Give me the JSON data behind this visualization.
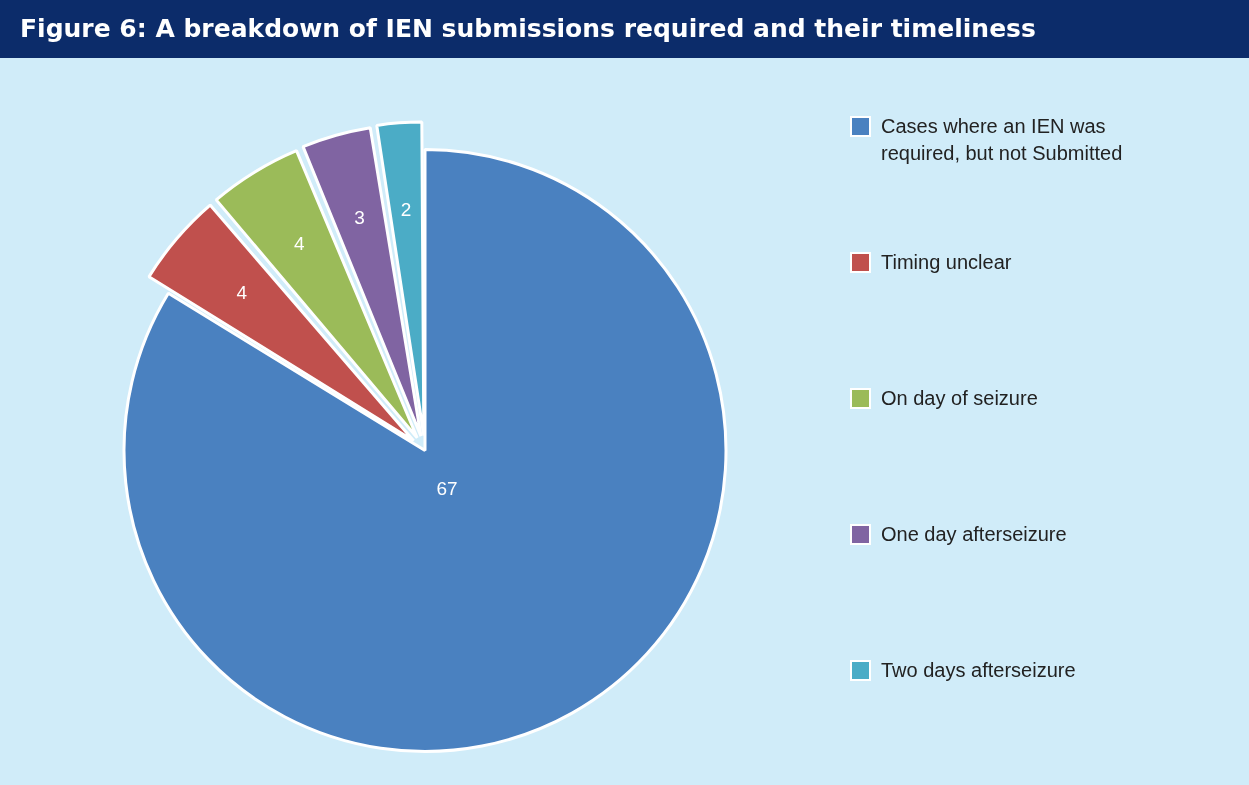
{
  "chart_data": {
    "type": "pie",
    "title": "Figure 6: A breakdown of IEN submissions required and their timeliness",
    "categories": [
      "Cases where an IEN was required, but not Submitted",
      "Timing unclear",
      "On day of seizure",
      "One day afterseizure",
      "Two days afterseizure"
    ],
    "values": [
      67,
      4,
      4,
      3,
      2
    ],
    "colors": [
      "#4a81c0",
      "#c0504d",
      "#9bbb59",
      "#8064a2",
      "#4bacc6"
    ],
    "data_labels": true,
    "legend": "right"
  }
}
